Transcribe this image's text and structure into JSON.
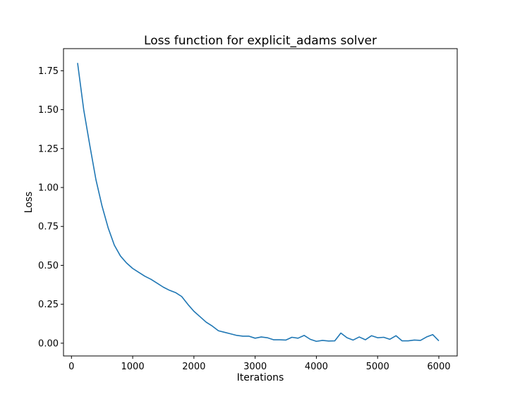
{
  "chart_data": {
    "type": "line",
    "title": "Loss function for explicit_adams solver",
    "xlabel": "Iterations",
    "ylabel": "Loss",
    "xlim": [
      -130,
      6300
    ],
    "ylim": [
      -0.082,
      1.892
    ],
    "x_ticks": [
      0,
      1000,
      2000,
      3000,
      4000,
      5000,
      6000
    ],
    "x_tick_labels": [
      "0",
      "1000",
      "2000",
      "3000",
      "4000",
      "5000",
      "6000"
    ],
    "y_ticks": [
      0.0,
      0.25,
      0.5,
      0.75,
      1.0,
      1.25,
      1.5,
      1.75
    ],
    "y_tick_labels": [
      "0.00",
      "0.25",
      "0.50",
      "0.75",
      "1.00",
      "1.25",
      "1.50",
      "1.75"
    ],
    "grid": false,
    "series": [
      {
        "color": "#1f77b4",
        "x": [
          100,
          200,
          300,
          400,
          500,
          600,
          700,
          800,
          900,
          1000,
          1100,
          1200,
          1300,
          1400,
          1500,
          1600,
          1700,
          1800,
          1900,
          2000,
          2100,
          2200,
          2300,
          2400,
          2500,
          2600,
          2700,
          2800,
          2900,
          3000,
          3100,
          3200,
          3300,
          3400,
          3500,
          3600,
          3700,
          3800,
          3900,
          4000,
          4100,
          4200,
          4300,
          4400,
          4500,
          4600,
          4700,
          4800,
          4900,
          5000,
          5100,
          5200,
          5300,
          5400,
          5500,
          5600,
          5700,
          5800,
          5900,
          6000
        ],
        "values": [
          1.8,
          1.5,
          1.27,
          1.05,
          0.88,
          0.74,
          0.63,
          0.56,
          0.515,
          0.48,
          0.455,
          0.43,
          0.41,
          0.385,
          0.36,
          0.34,
          0.325,
          0.3,
          0.25,
          0.205,
          0.17,
          0.135,
          0.11,
          0.08,
          0.07,
          0.06,
          0.05,
          0.045,
          0.045,
          0.032,
          0.04,
          0.035,
          0.022,
          0.022,
          0.02,
          0.038,
          0.032,
          0.05,
          0.025,
          0.012,
          0.018,
          0.014,
          0.015,
          0.065,
          0.035,
          0.02,
          0.04,
          0.022,
          0.048,
          0.035,
          0.038,
          0.025,
          0.048,
          0.015,
          0.015,
          0.02,
          0.018,
          0.04,
          0.055,
          0.015
        ]
      }
    ]
  }
}
